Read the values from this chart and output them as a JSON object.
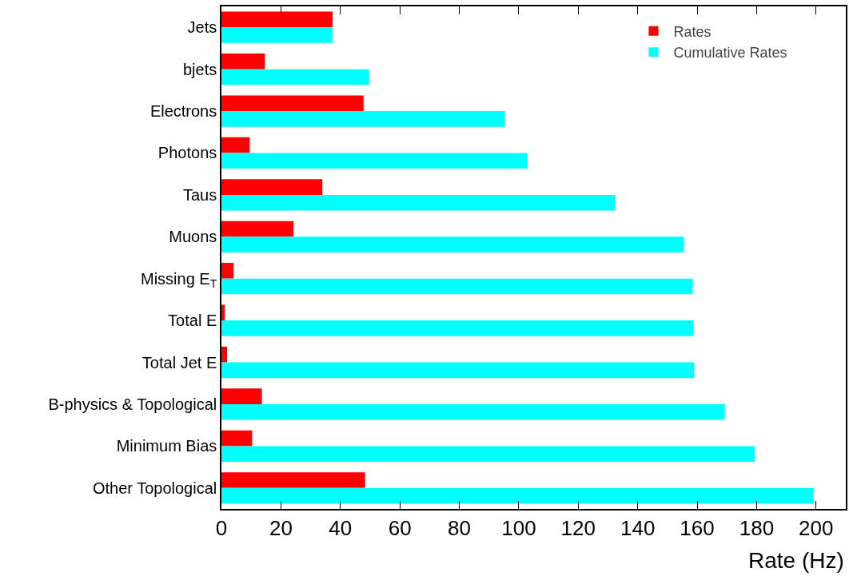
{
  "chart_data": {
    "type": "bar",
    "orientation": "horizontal",
    "xlabel": "Rate (Hz)",
    "categories": [
      "Jets",
      "bjets",
      "Electrons",
      "Photons",
      "Taus",
      "Muons",
      "Missing E$_{T}$",
      "Total E",
      "Total Jet E",
      "B-physics & Topological",
      "Minimum Bias",
      "Other Topological"
    ],
    "series": [
      {
        "name": "Rates",
        "color": "#ff0000",
        "values": [
          37.4,
          14.6,
          47.8,
          9.5,
          33.9,
          24.2,
          4.1,
          1.1,
          1.9,
          13.6,
          10.3,
          48.3
        ]
      },
      {
        "name": "Cumulative Rates",
        "color": "#00ffff",
        "values": [
          37.4,
          49.7,
          95.3,
          102.8,
          132.4,
          155.5,
          158.5,
          158.7,
          159,
          169.3,
          179.4,
          199.2
        ]
      }
    ],
    "xlim": [
      0,
      210
    ],
    "xticks": [
      0,
      20,
      40,
      60,
      80,
      100,
      120,
      140,
      160,
      180,
      200
    ],
    "grid": false,
    "legend": "top right"
  }
}
